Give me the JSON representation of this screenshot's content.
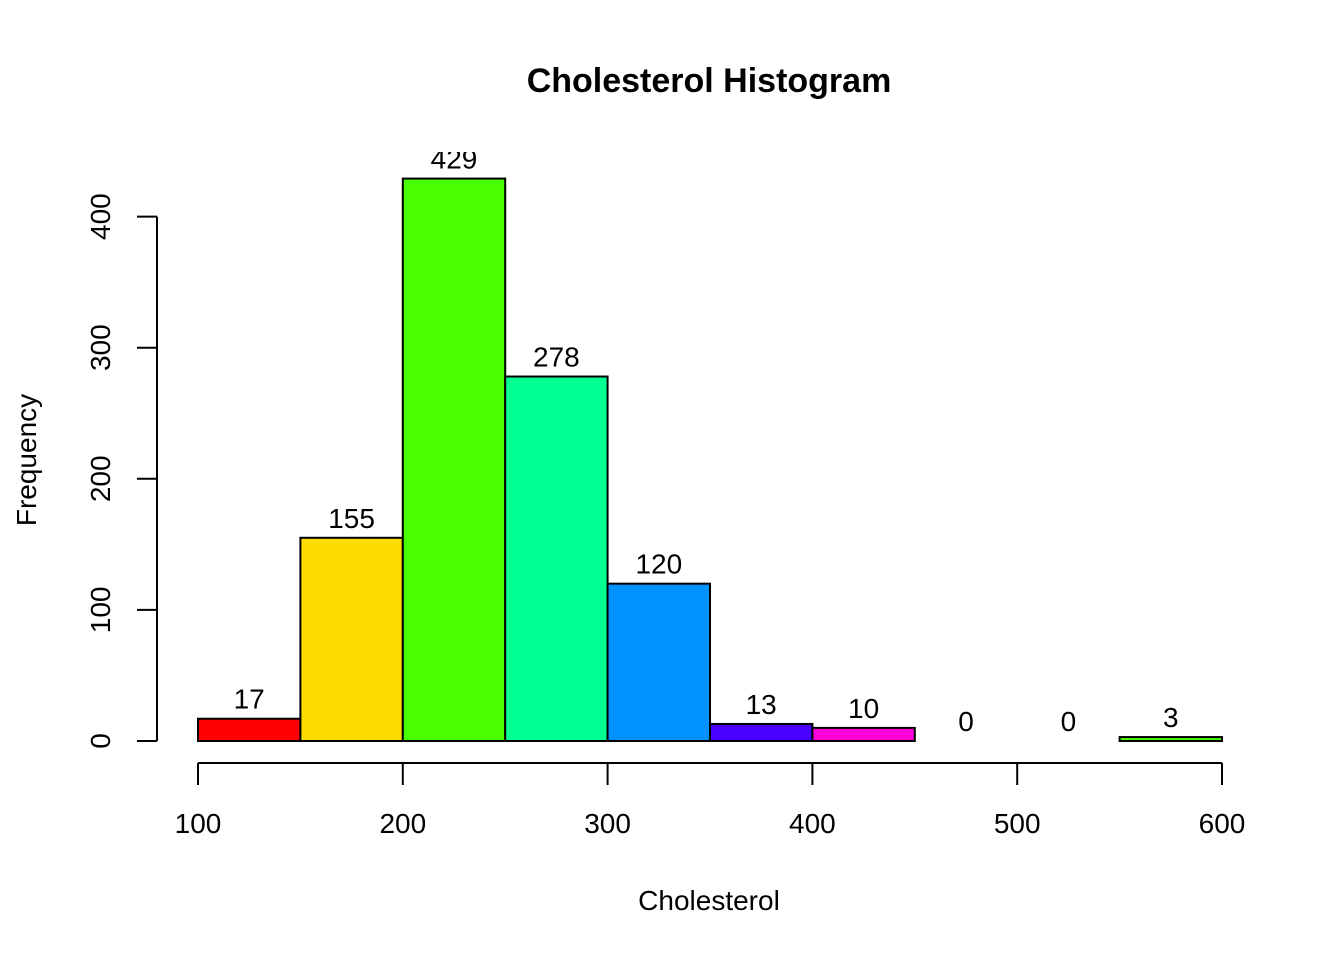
{
  "chart_data": {
    "type": "bar",
    "title": "Cholesterol Histogram",
    "xlabel": "Cholesterol",
    "ylabel": "Frequency",
    "bins": [
      {
        "start": 100,
        "end": 150,
        "count": 17,
        "color": "#FF0000"
      },
      {
        "start": 150,
        "end": 200,
        "count": 155,
        "color": "#FFDB00"
      },
      {
        "start": 200,
        "end": 250,
        "count": 429,
        "color": "#49FF00"
      },
      {
        "start": 250,
        "end": 300,
        "count": 278,
        "color": "#00FF92"
      },
      {
        "start": 300,
        "end": 350,
        "count": 120,
        "color": "#0092FF"
      },
      {
        "start": 350,
        "end": 400,
        "count": 13,
        "color": "#4900FF"
      },
      {
        "start": 400,
        "end": 450,
        "count": 10,
        "color": "#FF00DB"
      },
      {
        "start": 450,
        "end": 500,
        "count": 0,
        "color": "#FF0000"
      },
      {
        "start": 500,
        "end": 550,
        "count": 0,
        "color": "#FFDB00"
      },
      {
        "start": 550,
        "end": 600,
        "count": 3,
        "color": "#49FF00"
      }
    ],
    "xlim": [
      100,
      600
    ],
    "ylim": [
      0,
      429
    ],
    "xticks": [
      100,
      200,
      300,
      400,
      500,
      600
    ],
    "xtick_labels": [
      "100",
      "200",
      "300",
      "400",
      "500",
      "600"
    ],
    "yticks": [
      0,
      100,
      200,
      300,
      400
    ],
    "ytick_labels": [
      "0",
      "100",
      "200",
      "300",
      "400"
    ],
    "data_labels": [
      "17",
      "155",
      "429",
      "278",
      "120",
      "13",
      "10",
      "0",
      "0",
      "3"
    ],
    "grid": false,
    "legend": "none"
  }
}
